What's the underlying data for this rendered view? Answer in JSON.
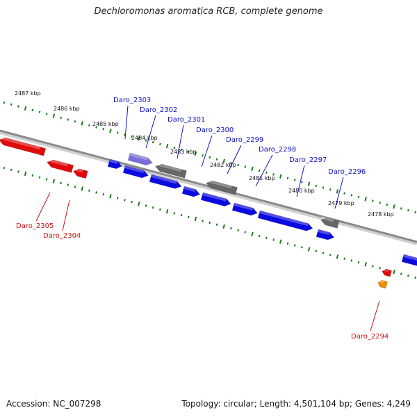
{
  "title": "Dechloromonas aromatica RCB, complete genome",
  "footer": {
    "accession": "Accession: NC_007298",
    "stats": "Topology: circular; Length: 4,501,104 bp; Genes: 4,249"
  },
  "colors": {
    "forward_gene": "#0a0ae0",
    "reverse_gene": "#e00a0a",
    "other_gene": "#666666",
    "highlight_gene": "#7a6fd8",
    "orange_gene": "#f08c00",
    "tick": "#1a7a1a",
    "backbone": "#8a8a8a",
    "label_forward": "#1010c0",
    "label_reverse": "#cc1010"
  },
  "scale_labels": [
    "2487 kbp",
    "2486 kbp",
    "2485 kbp",
    "2484 kbp",
    "2483 kbp",
    "2482 kbp",
    "2481 kbp",
    "2480 kbp",
    "2479 kbp",
    "2478 kbp"
  ],
  "gene_labels_forward": [
    "Daro_2303",
    "Daro_2302",
    "Daro_2301",
    "Daro_2300",
    "Daro_2299",
    "Daro_2298",
    "Daro_2297",
    "Daro_2296"
  ],
  "gene_labels_reverse": [
    "Daro_2305",
    "Daro_2304",
    "Daro_2294"
  ]
}
